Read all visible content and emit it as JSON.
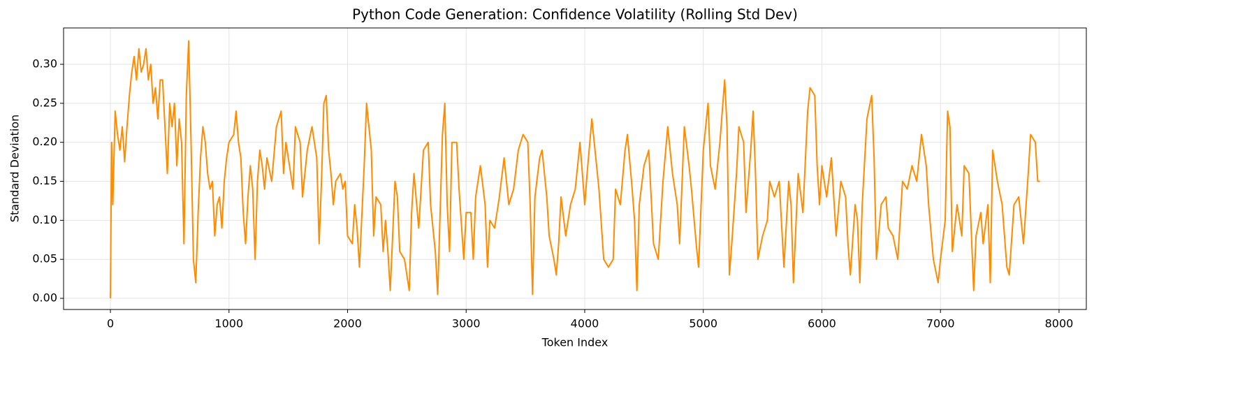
{
  "chart_data": {
    "type": "line",
    "title": "Python Code Generation: Confidence Volatility (Rolling Std Dev)",
    "x_label": "Token Index",
    "y_label": "Standard Deviation",
    "xlim": [
      -395,
      8230
    ],
    "ylim": [
      -0.0143,
      0.3466
    ],
    "xticks": [
      0,
      1000,
      2000,
      3000,
      4000,
      5000,
      6000,
      7000,
      8000
    ],
    "yticks": [
      {
        "value": 0,
        "label": "0.00"
      },
      0.05,
      {
        "value": 0.1,
        "label": "0.10"
      },
      0.15,
      {
        "value": 0.2,
        "label": "0.20"
      },
      0.25,
      {
        "value": 0.3,
        "label": "0.30"
      }
    ],
    "grid": true,
    "series": [
      {
        "color": "#ff8c00",
        "x": [
          0,
          10,
          20,
          40,
          60,
          80,
          100,
          120,
          140,
          160,
          180,
          200,
          220,
          240,
          260,
          280,
          300,
          320,
          340,
          360,
          380,
          400,
          420,
          440,
          460,
          480,
          500,
          520,
          540,
          560,
          580,
          600,
          620,
          640,
          660,
          680,
          700,
          720,
          740,
          760,
          780,
          800,
          820,
          840,
          860,
          880,
          900,
          920,
          940,
          960,
          980,
          1000,
          1040,
          1060,
          1080,
          1100,
          1120,
          1140,
          1160,
          1180,
          1200,
          1220,
          1240,
          1260,
          1280,
          1300,
          1320,
          1360,
          1400,
          1440,
          1460,
          1480,
          1500,
          1540,
          1560,
          1600,
          1620,
          1660,
          1700,
          1740,
          1760,
          1780,
          1800,
          1820,
          1840,
          1860,
          1880,
          1900,
          1940,
          1960,
          1980,
          2000,
          2040,
          2060,
          2080,
          2100,
          2140,
          2160,
          2180,
          2200,
          2220,
          2240,
          2280,
          2300,
          2320,
          2340,
          2360,
          2400,
          2420,
          2440,
          2480,
          2520,
          2540,
          2560,
          2600,
          2640,
          2680,
          2700,
          2740,
          2760,
          2800,
          2820,
          2840,
          2860,
          2880,
          2920,
          2940,
          2980,
          3000,
          3040,
          3060,
          3080,
          3120,
          3160,
          3180,
          3200,
          3240,
          3280,
          3320,
          3360,
          3400,
          3440,
          3480,
          3520,
          3540,
          3560,
          3580,
          3620,
          3640,
          3680,
          3700,
          3740,
          3760,
          3780,
          3800,
          3840,
          3880,
          3920,
          3960,
          4000,
          4020,
          4060,
          4080,
          4120,
          4160,
          4200,
          4240,
          4260,
          4300,
          4340,
          4360,
          4400,
          4420,
          4440,
          4460,
          4500,
          4540,
          4580,
          4620,
          4660,
          4700,
          4740,
          4780,
          4800,
          4840,
          4880,
          4900,
          4940,
          4960,
          5000,
          5040,
          5060,
          5100,
          5140,
          5180,
          5200,
          5220,
          5240,
          5280,
          5300,
          5340,
          5360,
          5400,
          5420,
          5440,
          5460,
          5500,
          5540,
          5560,
          5600,
          5640,
          5680,
          5720,
          5740,
          5760,
          5800,
          5840,
          5880,
          5900,
          5940,
          5960,
          5980,
          6000,
          6040,
          6080,
          6120,
          6160,
          6200,
          6220,
          6240,
          6280,
          6300,
          6320,
          6340,
          6380,
          6420,
          6440,
          6460,
          6500,
          6540,
          6560,
          6600,
          6640,
          6680,
          6720,
          6760,
          6800,
          6840,
          6880,
          6900,
          6940,
          6980,
          7000,
          7040,
          7060,
          7080,
          7100,
          7140,
          7180,
          7200,
          7240,
          7280,
          7300,
          7340,
          7360,
          7400,
          7420,
          7440,
          7480,
          7520,
          7560,
          7580,
          7620,
          7660,
          7700,
          7740,
          7760,
          7800,
          7820,
          7840
        ],
        "values": [
          0.0,
          0.2,
          0.12,
          0.24,
          0.21,
          0.19,
          0.22,
          0.175,
          0.22,
          0.26,
          0.29,
          0.31,
          0.28,
          0.32,
          0.29,
          0.3,
          0.32,
          0.28,
          0.3,
          0.25,
          0.27,
          0.23,
          0.28,
          0.28,
          0.22,
          0.16,
          0.25,
          0.22,
          0.25,
          0.17,
          0.23,
          0.2,
          0.07,
          0.26,
          0.33,
          0.2,
          0.05,
          0.02,
          0.11,
          0.18,
          0.22,
          0.2,
          0.16,
          0.14,
          0.15,
          0.08,
          0.12,
          0.13,
          0.09,
          0.15,
          0.18,
          0.2,
          0.21,
          0.24,
          0.2,
          0.18,
          0.11,
          0.07,
          0.13,
          0.17,
          0.14,
          0.05,
          0.15,
          0.19,
          0.17,
          0.14,
          0.18,
          0.15,
          0.22,
          0.24,
          0.16,
          0.2,
          0.18,
          0.14,
          0.22,
          0.2,
          0.13,
          0.19,
          0.22,
          0.18,
          0.07,
          0.15,
          0.25,
          0.26,
          0.19,
          0.16,
          0.12,
          0.15,
          0.16,
          0.14,
          0.15,
          0.08,
          0.07,
          0.12,
          0.09,
          0.04,
          0.17,
          0.25,
          0.22,
          0.19,
          0.08,
          0.13,
          0.12,
          0.06,
          0.1,
          0.06,
          0.01,
          0.15,
          0.13,
          0.06,
          0.05,
          0.01,
          0.11,
          0.16,
          0.09,
          0.19,
          0.2,
          0.12,
          0.06,
          0.005,
          0.21,
          0.25,
          0.12,
          0.06,
          0.2,
          0.2,
          0.14,
          0.05,
          0.11,
          0.11,
          0.05,
          0.13,
          0.17,
          0.12,
          0.04,
          0.1,
          0.09,
          0.13,
          0.18,
          0.12,
          0.14,
          0.19,
          0.21,
          0.2,
          0.12,
          0.005,
          0.13,
          0.18,
          0.19,
          0.13,
          0.08,
          0.05,
          0.03,
          0.07,
          0.13,
          0.08,
          0.12,
          0.14,
          0.2,
          0.12,
          0.16,
          0.23,
          0.2,
          0.14,
          0.05,
          0.04,
          0.05,
          0.14,
          0.12,
          0.19,
          0.21,
          0.14,
          0.1,
          0.01,
          0.12,
          0.17,
          0.19,
          0.07,
          0.05,
          0.15,
          0.22,
          0.16,
          0.12,
          0.07,
          0.22,
          0.17,
          0.14,
          0.07,
          0.04,
          0.19,
          0.25,
          0.17,
          0.14,
          0.2,
          0.28,
          0.22,
          0.03,
          0.07,
          0.16,
          0.22,
          0.2,
          0.11,
          0.19,
          0.24,
          0.16,
          0.05,
          0.08,
          0.1,
          0.15,
          0.13,
          0.15,
          0.04,
          0.15,
          0.12,
          0.02,
          0.16,
          0.11,
          0.24,
          0.27,
          0.26,
          0.17,
          0.12,
          0.17,
          0.13,
          0.18,
          0.08,
          0.15,
          0.13,
          0.07,
          0.03,
          0.12,
          0.1,
          0.02,
          0.12,
          0.23,
          0.26,
          0.18,
          0.05,
          0.12,
          0.13,
          0.09,
          0.08,
          0.05,
          0.15,
          0.14,
          0.17,
          0.15,
          0.21,
          0.17,
          0.12,
          0.05,
          0.02,
          0.05,
          0.1,
          0.24,
          0.22,
          0.06,
          0.12,
          0.08,
          0.17,
          0.16,
          0.01,
          0.08,
          0.11,
          0.07,
          0.12,
          0.02,
          0.19,
          0.15,
          0.12,
          0.04,
          0.03,
          0.12,
          0.13,
          0.07,
          0.16,
          0.21,
          0.2,
          0.15,
          0.15
        ]
      }
    ]
  }
}
